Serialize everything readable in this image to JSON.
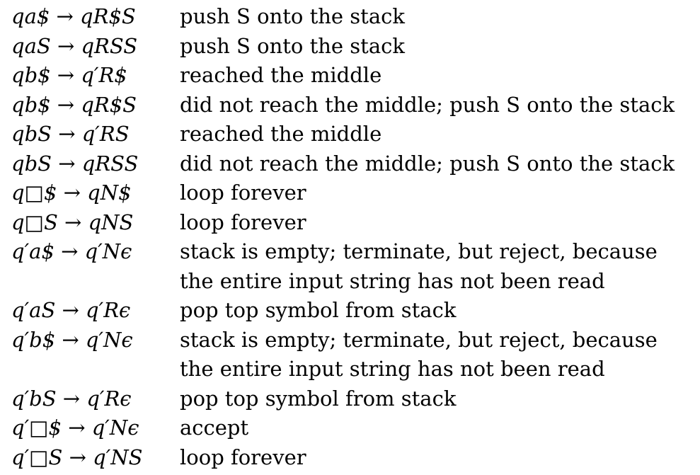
{
  "rows": [
    {
      "rule": "qa$ → qR$S",
      "desc": "push S onto the stack"
    },
    {
      "rule": "qaS → qRSS",
      "desc": "push S onto the stack"
    },
    {
      "rule": "qb$ → q′R$",
      "desc": "reached the middle"
    },
    {
      "rule": "qb$ → qR$S",
      "desc": "did not reach the middle; push S onto the stack"
    },
    {
      "rule": "qbS → q′RS",
      "desc": "reached the middle"
    },
    {
      "rule": "qbS → qRSS",
      "desc": "did not reach the middle; push S onto the stack"
    },
    {
      "rule": "q□$ → qN$",
      "desc": "loop forever"
    },
    {
      "rule": "q□S → qNS",
      "desc": "loop forever"
    },
    {
      "rule": "q′a$ → q′Nϵ",
      "desc": "stack is empty; terminate, but reject, because"
    },
    {
      "rule": "",
      "desc": "the entire input string has not been read"
    },
    {
      "rule": "q′aS → q′Rϵ",
      "desc": "pop top symbol from stack"
    },
    {
      "rule": "q′b$ → q′Nϵ",
      "desc": "stack is empty; terminate, but reject, because"
    },
    {
      "rule": "",
      "desc": "the entire input string has not been read"
    },
    {
      "rule": "q′bS → q′Rϵ",
      "desc": "pop top symbol from stack"
    },
    {
      "rule": "q′□$ → q′Nϵ",
      "desc": "accept"
    },
    {
      "rule": "q′□S → q′NS",
      "desc": "loop forever"
    }
  ]
}
